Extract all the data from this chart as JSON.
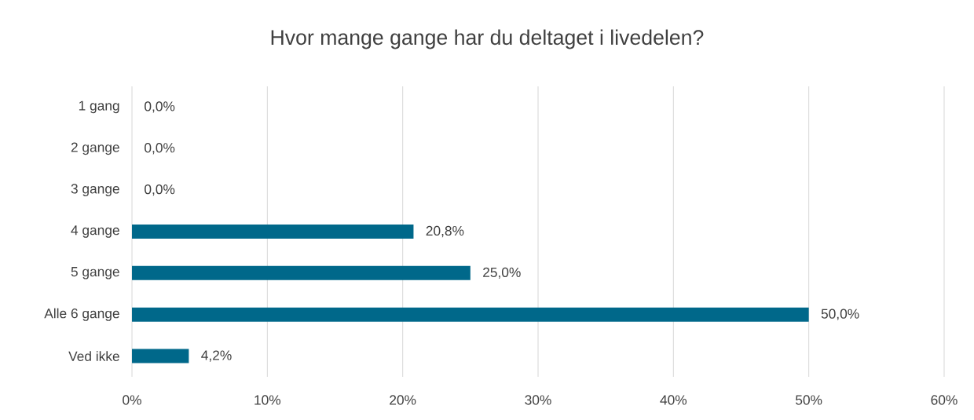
{
  "chart_data": {
    "type": "bar",
    "orientation": "horizontal",
    "title": "Hvor mange gange har du deltaget i livedelen?",
    "categories": [
      "1 gang",
      "2 gange",
      "3 gange",
      "4 gange",
      "5 gange",
      "Alle 6 gange",
      "Ved ikke"
    ],
    "values": [
      0,
      0,
      0,
      20.8,
      25.0,
      50.0,
      4.2
    ],
    "value_labels": [
      "0,0%",
      "0,0%",
      "0,0%",
      "20,8%",
      "25,0%",
      "50,0%",
      "4,2%"
    ],
    "color": "#00688a",
    "xlim": [
      0,
      60
    ],
    "xticks": [
      {
        "value": 0,
        "label": "0%"
      },
      {
        "value": 10,
        "label": "10%"
      },
      {
        "value": 20,
        "label": "20%"
      },
      {
        "value": 30,
        "label": "30%"
      },
      {
        "value": 40,
        "label": "40%"
      },
      {
        "value": 50,
        "label": "50%"
      },
      {
        "value": 60,
        "label": "60%"
      }
    ],
    "grid": "x"
  }
}
